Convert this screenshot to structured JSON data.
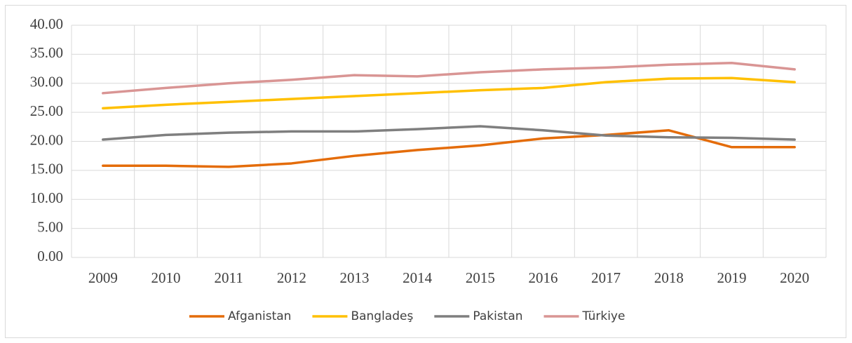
{
  "chart_data": {
    "type": "line",
    "categories": [
      "2009",
      "2010",
      "2011",
      "2012",
      "2013",
      "2014",
      "2015",
      "2016",
      "2017",
      "2018",
      "2019",
      "2020"
    ],
    "series": [
      {
        "name": "Afganistan",
        "color": "#e46c0a",
        "values": [
          15.8,
          15.8,
          15.6,
          16.2,
          17.5,
          18.5,
          19.3,
          20.5,
          21.1,
          21.9,
          19.0,
          19.0
        ]
      },
      {
        "name": "Bangladeş",
        "color": "#ffc000",
        "values": [
          25.7,
          26.3,
          26.8,
          27.3,
          27.8,
          28.3,
          28.8,
          29.2,
          30.2,
          30.8,
          30.9,
          30.2
        ]
      },
      {
        "name": "Pakistan",
        "color": "#7f7f7f",
        "values": [
          20.3,
          21.1,
          21.5,
          21.7,
          21.7,
          22.1,
          22.6,
          21.9,
          21.0,
          20.7,
          20.6,
          20.3
        ]
      },
      {
        "name": "Türkiye",
        "color": "#d99594",
        "values": [
          28.3,
          29.2,
          30.0,
          30.6,
          31.4,
          31.2,
          31.9,
          32.4,
          32.7,
          33.2,
          33.5,
          32.4
        ]
      }
    ],
    "ylim": [
      0,
      40
    ],
    "yticks": [
      {
        "value": 0,
        "label": "0.00"
      },
      {
        "value": 5,
        "label": "5.00"
      },
      {
        "value": 10,
        "label": "10.00"
      },
      {
        "value": 15,
        "label": "15.00"
      },
      {
        "value": 20,
        "label": "20.00"
      },
      {
        "value": 25,
        "label": "25.00"
      },
      {
        "value": 30,
        "label": "30.00"
      },
      {
        "value": 35,
        "label": "35.00"
      },
      {
        "value": 40,
        "label": "40.00"
      }
    ],
    "grid": true,
    "legend": "bottom"
  }
}
